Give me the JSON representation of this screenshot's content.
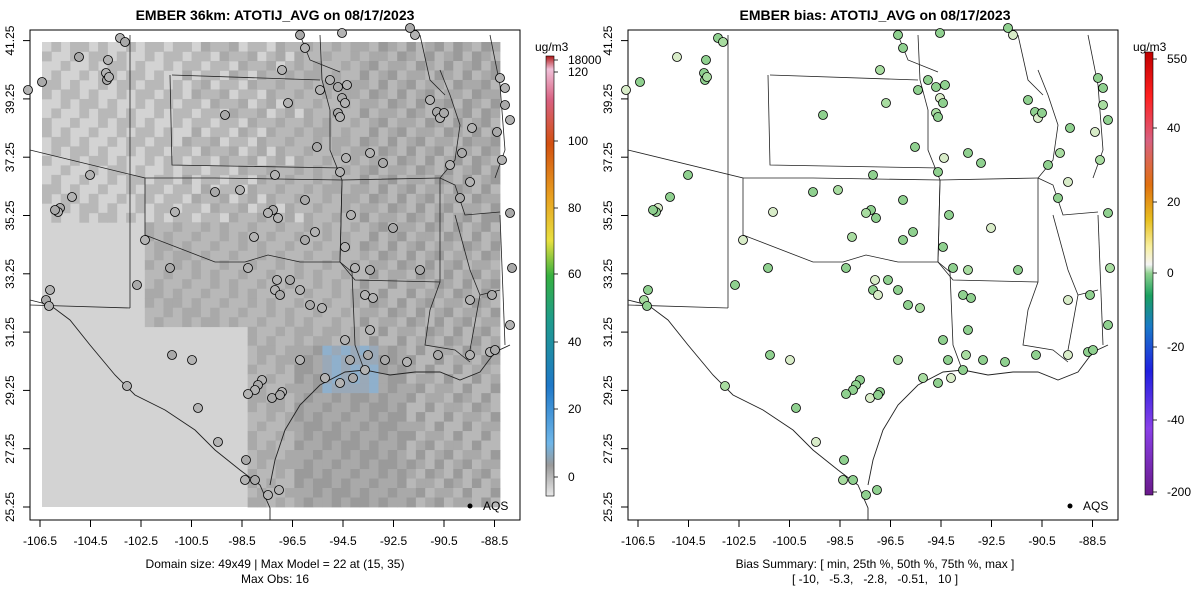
{
  "left_panel": {
    "title": "EMBER 36km: ATOTIJ_AVG on 08/17/2023",
    "x_ticks": [
      "-106.5",
      "-104.5",
      "-102.5",
      "-100.5",
      "-98.5",
      "-96.5",
      "-94.5",
      "-92.5",
      "-90.5",
      "-88.5"
    ],
    "y_ticks": [
      "25.25",
      "27.25",
      "29.25",
      "31.25",
      "33.25",
      "35.25",
      "37.25",
      "39.25",
      "41.25"
    ],
    "legend_label": "AQS",
    "footer_line1": "Domain size: 49x49 | Max Model = 22 at (15, 35)",
    "footer_line2": "Max Obs: 16",
    "colorbar": {
      "unit": "ug/m3",
      "ticks": [
        "18000",
        "120",
        "100",
        "80",
        "60",
        "40",
        "20",
        "0"
      ]
    }
  },
  "right_panel": {
    "title": "EMBER bias: ATOTIJ_AVG on 08/17/2023",
    "x_ticks": [
      "-106.5",
      "-104.5",
      "-102.5",
      "-100.5",
      "-98.5",
      "-96.5",
      "-94.5",
      "-92.5",
      "-90.5",
      "-88.5"
    ],
    "y_ticks": [
      "25.25",
      "27.25",
      "29.25",
      "31.25",
      "33.25",
      "35.25",
      "37.25",
      "39.25",
      "41.25"
    ],
    "legend_label": "AQS",
    "footer_line1": "Bias Summary: [ min, 25th %, 50th %, 75th %, max ]",
    "footer_line2": "[ -10,   -5.3,   -2.8,   -0.51,   10 ]",
    "colorbar": {
      "unit": "ug/m3",
      "ticks": [
        "550",
        "40",
        "20",
        "0",
        "-20",
        "-40",
        "-200"
      ]
    }
  },
  "colors": {
    "land_gray": "#d3d3d3",
    "dark_gray": "#a9a9a9",
    "mid_gray": "#bebebe",
    "low_bias": "#8fcf8f",
    "high_bias": "#f0e070"
  }
}
